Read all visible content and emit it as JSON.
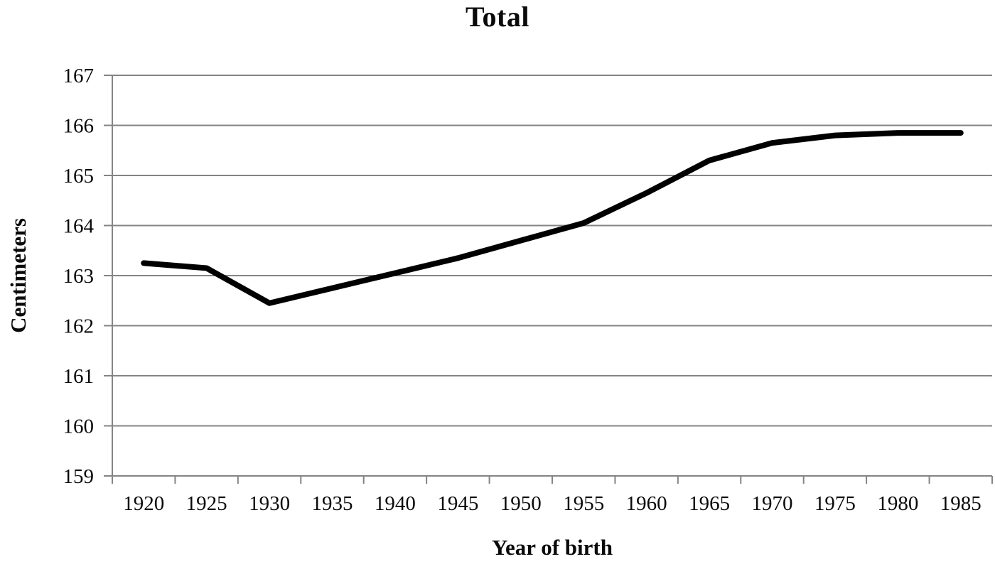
{
  "chart_data": {
    "type": "line",
    "title": "Total",
    "xlabel": "Year of birth",
    "ylabel": "Centimeters",
    "categories": [
      "1920",
      "1925",
      "1930",
      "1935",
      "1940",
      "1945",
      "1950",
      "1955",
      "1960",
      "1965",
      "1970",
      "1975",
      "1980",
      "1985"
    ],
    "series": [
      {
        "name": "Total",
        "values": [
          163.25,
          163.15,
          162.45,
          162.75,
          163.05,
          163.35,
          163.7,
          164.05,
          164.65,
          165.3,
          165.65,
          165.8,
          165.85,
          165.85
        ]
      }
    ],
    "ylim": [
      159,
      167
    ],
    "ytick_step": 1,
    "ytick_labels": [
      "159",
      "160",
      "161",
      "162",
      "163",
      "164",
      "165",
      "166",
      "167"
    ],
    "grid": "horizontal",
    "legend_position": "none",
    "colors": {
      "line": "#000000",
      "grid": "#848484",
      "axis": "#848484",
      "text": "#0a0a0a",
      "background": "#ffffff"
    }
  }
}
